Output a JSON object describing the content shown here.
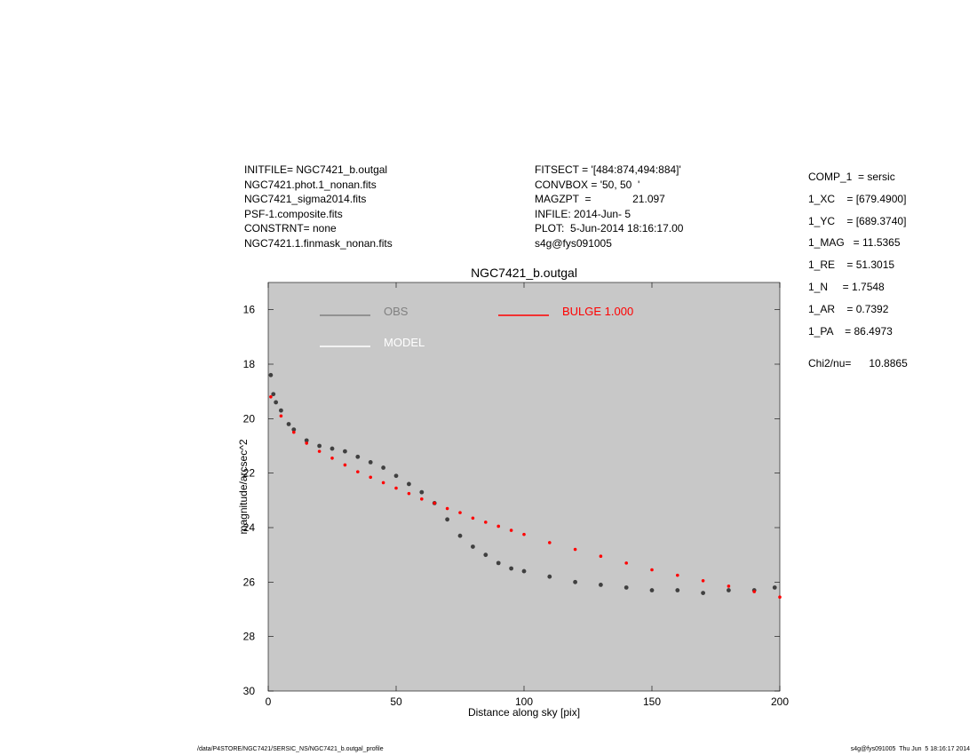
{
  "header": {
    "left_lines": [
      "INITFILE= NGC7421_b.outgal",
      "NGC7421.phot.1_nonan.fits",
      "NGC7421_sigma2014.fits",
      "PSF-1.composite.fits",
      "CONSTRNT= none",
      "NGC7421.1.finmask_nonan.fits"
    ],
    "mid_lines": [
      "FITSECT = '[484:874,494:884]'",
      "CONVBOX = '50, 50  '",
      "MAGZPT  =              21.097",
      "INFILE: 2014-Jun- 5",
      "PLOT:  5-Jun-2014 18:16:17.00",
      "s4g@fys091005"
    ]
  },
  "components": {
    "lines": [
      "COMP_1  = sersic",
      "1_XC    = [679.4900]",
      "1_YC    = [689.3740]",
      "1_MAG   = 11.5365",
      "1_RE    = 51.3015",
      "1_N     = 1.7548",
      "1_AR    = 0.7392",
      "1_PA    = 86.4973"
    ],
    "chi": "Chi2/nu=      10.8865"
  },
  "footer": {
    "left": "/data/P4STORE/NGC7421/SERSIC_NS/NGC7421_b.outgal_profile",
    "right": "s4g@fys091005  Thu Jun  5 18:16:17 2014"
  },
  "chart_data": {
    "type": "scatter",
    "title": "NGC7421_b.outgal",
    "xlabel": "Distance along sky [pix]",
    "ylabel": "magnitude/arcsec^2",
    "xlim": [
      0,
      200
    ],
    "ylim": [
      30,
      15
    ],
    "y_inverted": true,
    "x_ticks": [
      0,
      50,
      100,
      150,
      200
    ],
    "y_ticks": [
      16,
      18,
      20,
      22,
      24,
      26,
      28,
      30
    ],
    "background": "#c8c8c8",
    "grid": false,
    "legend": [
      {
        "label": "OBS",
        "color": "#808080",
        "placement": "top-left"
      },
      {
        "label": "MODEL",
        "color": "#ffffff",
        "placement": "top-left"
      },
      {
        "label": "BULGE  1.000",
        "color": "#ff0000",
        "placement": "top-center"
      }
    ],
    "series": [
      {
        "name": "OBS",
        "color": "#404040",
        "x": [
          1,
          2,
          3,
          5,
          8,
          10,
          15,
          20,
          25,
          30,
          35,
          40,
          45,
          50,
          55,
          60,
          65,
          70,
          75,
          80,
          85,
          90,
          95,
          100,
          110,
          120,
          130,
          140,
          150,
          160,
          170,
          180,
          190,
          198
        ],
        "y": [
          18.4,
          19.1,
          19.4,
          19.7,
          20.2,
          20.4,
          20.8,
          21.0,
          21.1,
          21.2,
          21.4,
          21.6,
          21.8,
          22.1,
          22.4,
          22.7,
          23.1,
          23.7,
          24.3,
          24.7,
          25.0,
          25.3,
          25.5,
          25.6,
          25.8,
          26.0,
          26.1,
          26.2,
          26.3,
          26.3,
          26.4,
          26.3,
          26.3,
          26.2
        ]
      },
      {
        "name": "BULGE  1.000",
        "color": "#ff0000",
        "x": [
          1,
          5,
          10,
          15,
          20,
          25,
          30,
          35,
          40,
          45,
          50,
          55,
          60,
          65,
          70,
          75,
          80,
          85,
          90,
          95,
          100,
          110,
          120,
          130,
          140,
          150,
          160,
          170,
          180,
          190,
          200
        ],
        "y": [
          19.2,
          19.9,
          20.5,
          20.9,
          21.2,
          21.45,
          21.7,
          21.95,
          22.15,
          22.35,
          22.55,
          22.75,
          22.95,
          23.1,
          23.3,
          23.45,
          23.65,
          23.8,
          23.95,
          24.1,
          24.25,
          24.55,
          24.8,
          25.05,
          25.3,
          25.55,
          25.75,
          25.95,
          26.15,
          26.35,
          26.55
        ]
      }
    ]
  }
}
